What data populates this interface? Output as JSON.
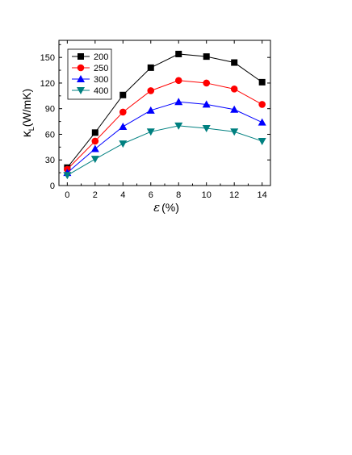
{
  "chart_data": {
    "type": "line",
    "xlabel": "ε (%)",
    "ylabel": "κL(W/mK)",
    "ylabel_symbol": "κ",
    "ylabel_sub": "L",
    "ylabel_unit": "(W/mK)",
    "xlabel_symbol": "ε",
    "xlabel_unit": "(%)",
    "xlim": [
      -0.6,
      14.6
    ],
    "ylim": [
      0,
      170
    ],
    "xticks": [
      0,
      2,
      4,
      6,
      8,
      10,
      12,
      14
    ],
    "yticks": [
      0,
      30,
      60,
      90,
      120,
      150
    ],
    "grid": false,
    "legend_position": "top-left",
    "x": [
      0,
      2,
      4,
      6,
      8,
      10,
      12,
      14
    ],
    "series": [
      {
        "name": "200",
        "color": "#000000",
        "marker": "square",
        "values": [
          21,
          62,
          106,
          138,
          154,
          151,
          144,
          121
        ]
      },
      {
        "name": "250",
        "color": "#ff0000",
        "marker": "circle",
        "values": [
          19,
          52,
          86,
          111,
          123,
          120,
          113,
          95
        ]
      },
      {
        "name": "300",
        "color": "#0000ff",
        "marker": "triangle-up",
        "values": [
          15,
          43,
          69,
          88,
          98,
          95,
          89,
          74
        ]
      },
      {
        "name": "400",
        "color": "#008080",
        "marker": "triangle-down",
        "values": [
          12,
          31,
          49,
          63,
          70,
          67,
          63,
          52
        ]
      }
    ]
  }
}
